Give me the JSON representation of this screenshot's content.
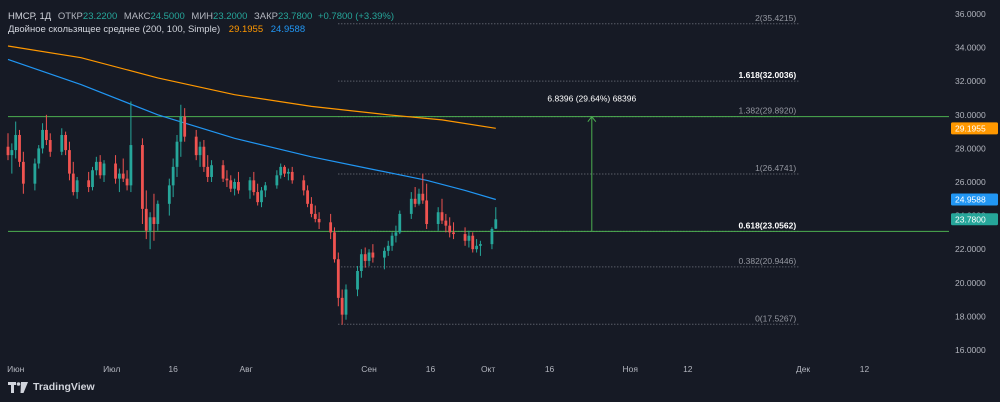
{
  "header": {
    "symbol": "НМСР, 1Д",
    "open_label": "ОТКР",
    "open_value": "23.2200",
    "high_label": "МАКС",
    "high_value": "24.5000",
    "low_label": "МИН",
    "low_value": "23.2000",
    "close_label": "ЗАКР",
    "close_value": "23.7800",
    "change": "+0.7800 (+3.39%)",
    "indicator_title": "Двойное скользящее среднее (200, 100, Simple)",
    "indicator_value_1": "29.1955",
    "indicator_value_2": "24.9588"
  },
  "branding": {
    "logo_icon": "tradingview-logo-icon",
    "logo_text": "TradingView"
  },
  "chart_data": {
    "type": "candlestick",
    "ylim": [
      15.4,
      36.6
    ],
    "y_ticks": [
      "36.0000",
      "34.0000",
      "32.0000",
      "30.0000",
      "28.0000",
      "26.0000",
      "24.0000",
      "22.0000",
      "20.0000",
      "18.0000",
      "16.0000"
    ],
    "x_ticks": [
      "Июн",
      "Июл",
      "16",
      "Авг",
      "Сен",
      "16",
      "Окт",
      "16",
      "Ноя",
      "12",
      "Дек",
      "12"
    ],
    "x_tick_days": [
      3,
      28,
      44,
      63,
      95,
      111,
      126,
      142,
      163,
      178,
      208,
      224
    ],
    "x_range_days": [
      1,
      246
    ],
    "colors": {
      "up": "#26a69a",
      "down": "#ef5350",
      "ma200": "#ff9800",
      "ma100": "#2196f3",
      "fib": "#787b86",
      "level": "#4caf50",
      "measure": "#4caf50"
    },
    "candles": [
      {
        "d": 1,
        "o": 28.1,
        "h": 28.9,
        "l": 27.3,
        "c": 27.6
      },
      {
        "d": 2,
        "o": 27.6,
        "h": 28.3,
        "l": 26.5,
        "c": 27.9
      },
      {
        "d": 3,
        "o": 27.9,
        "h": 29.6,
        "l": 27.4,
        "c": 28.8
      },
      {
        "d": 4,
        "o": 28.8,
        "h": 29.1,
        "l": 26.9,
        "c": 27.2
      },
      {
        "d": 5,
        "o": 27.2,
        "h": 27.8,
        "l": 25.3,
        "c": 25.9
      },
      {
        "d": 8,
        "o": 25.9,
        "h": 27.4,
        "l": 25.5,
        "c": 27.1
      },
      {
        "d": 9,
        "o": 27.1,
        "h": 28.2,
        "l": 26.8,
        "c": 28.0
      },
      {
        "d": 10,
        "o": 28.0,
        "h": 29.5,
        "l": 27.7,
        "c": 29.1
      },
      {
        "d": 11,
        "o": 29.1,
        "h": 30.0,
        "l": 28.2,
        "c": 28.5
      },
      {
        "d": 12,
        "o": 28.5,
        "h": 28.9,
        "l": 27.5,
        "c": 27.8
      },
      {
        "d": 15,
        "o": 27.8,
        "h": 29.2,
        "l": 27.6,
        "c": 28.8
      },
      {
        "d": 16,
        "o": 28.8,
        "h": 29.0,
        "l": 27.6,
        "c": 27.9
      },
      {
        "d": 17,
        "o": 27.9,
        "h": 28.4,
        "l": 26.1,
        "c": 26.5
      },
      {
        "d": 18,
        "o": 26.5,
        "h": 27.2,
        "l": 25.2,
        "c": 25.4
      },
      {
        "d": 19,
        "o": 25.4,
        "h": 26.3,
        "l": 25.0,
        "c": 26.1
      },
      {
        "d": 22,
        "o": 26.1,
        "h": 26.6,
        "l": 25.4,
        "c": 25.7
      },
      {
        "d": 23,
        "o": 25.7,
        "h": 26.9,
        "l": 25.5,
        "c": 26.7
      },
      {
        "d": 24,
        "o": 26.7,
        "h": 27.5,
        "l": 26.4,
        "c": 27.2
      },
      {
        "d": 25,
        "o": 27.2,
        "h": 27.6,
        "l": 26.2,
        "c": 26.4
      },
      {
        "d": 26,
        "o": 26.4,
        "h": 27.3,
        "l": 26.0,
        "c": 27.1
      },
      {
        "d": 29,
        "o": 27.1,
        "h": 27.6,
        "l": 25.9,
        "c": 26.2
      },
      {
        "d": 30,
        "o": 26.2,
        "h": 26.8,
        "l": 25.4,
        "c": 26.5
      },
      {
        "d": 31,
        "o": 26.5,
        "h": 27.4,
        "l": 26.0,
        "c": 26.2
      },
      {
        "d": 32,
        "o": 26.2,
        "h": 26.7,
        "l": 25.5,
        "c": 25.8
      },
      {
        "d": 33,
        "o": 25.8,
        "h": 30.8,
        "l": 25.4,
        "c": 28.2
      },
      {
        "d": 36,
        "o": 28.2,
        "h": 28.6,
        "l": 23.5,
        "c": 24.4
      },
      {
        "d": 37,
        "o": 24.4,
        "h": 25.5,
        "l": 22.6,
        "c": 23.1
      },
      {
        "d": 38,
        "o": 23.1,
        "h": 24.2,
        "l": 22.0,
        "c": 23.9
      },
      {
        "d": 39,
        "o": 23.9,
        "h": 25.3,
        "l": 22.5,
        "c": 23.5
      },
      {
        "d": 40,
        "o": 23.5,
        "h": 24.9,
        "l": 23.1,
        "c": 24.7
      },
      {
        "d": 43,
        "o": 24.7,
        "h": 26.2,
        "l": 24.0,
        "c": 25.8
      },
      {
        "d": 44,
        "o": 25.8,
        "h": 27.4,
        "l": 25.1,
        "c": 26.9
      },
      {
        "d": 45,
        "o": 26.9,
        "h": 28.8,
        "l": 26.3,
        "c": 28.4
      },
      {
        "d": 46,
        "o": 28.4,
        "h": 30.6,
        "l": 27.5,
        "c": 29.9
      },
      {
        "d": 47,
        "o": 29.9,
        "h": 30.4,
        "l": 28.4,
        "c": 28.7
      },
      {
        "d": 50,
        "o": 28.7,
        "h": 29.1,
        "l": 27.3,
        "c": 27.6
      },
      {
        "d": 51,
        "o": 27.6,
        "h": 28.4,
        "l": 26.9,
        "c": 28.1
      },
      {
        "d": 52,
        "o": 28.1,
        "h": 28.5,
        "l": 26.6,
        "c": 26.9
      },
      {
        "d": 53,
        "o": 26.9,
        "h": 27.6,
        "l": 26.0,
        "c": 26.3
      },
      {
        "d": 54,
        "o": 26.3,
        "h": 27.3,
        "l": 26.0,
        "c": 27.0
      },
      {
        "d": 57,
        "o": 27.0,
        "h": 27.3,
        "l": 26.0,
        "c": 26.2
      },
      {
        "d": 58,
        "o": 26.2,
        "h": 26.7,
        "l": 25.7,
        "c": 26.1
      },
      {
        "d": 59,
        "o": 26.1,
        "h": 26.4,
        "l": 25.4,
        "c": 25.6
      },
      {
        "d": 60,
        "o": 25.6,
        "h": 26.2,
        "l": 25.2,
        "c": 26.0
      },
      {
        "d": 61,
        "o": 26.0,
        "h": 26.6,
        "l": 25.3,
        "c": 25.5
      },
      {
        "d": 64,
        "o": 25.5,
        "h": 26.3,
        "l": 25.0,
        "c": 26.1
      },
      {
        "d": 65,
        "o": 26.1,
        "h": 26.6,
        "l": 25.2,
        "c": 25.4
      },
      {
        "d": 66,
        "o": 25.4,
        "h": 25.9,
        "l": 24.6,
        "c": 24.8
      },
      {
        "d": 67,
        "o": 24.8,
        "h": 25.7,
        "l": 24.5,
        "c": 25.5
      },
      {
        "d": 68,
        "o": 25.5,
        "h": 26.0,
        "l": 25.1,
        "c": 25.8
      },
      {
        "d": 71,
        "o": 25.8,
        "h": 26.7,
        "l": 25.6,
        "c": 26.4
      },
      {
        "d": 72,
        "o": 26.4,
        "h": 27.1,
        "l": 26.2,
        "c": 26.9
      },
      {
        "d": 73,
        "o": 26.9,
        "h": 27.0,
        "l": 26.3,
        "c": 26.5
      },
      {
        "d": 74,
        "o": 26.5,
        "h": 26.8,
        "l": 26.1,
        "c": 26.6
      },
      {
        "d": 75,
        "o": 26.6,
        "h": 26.9,
        "l": 25.9,
        "c": 26.1
      },
      {
        "d": 78,
        "o": 26.1,
        "h": 26.4,
        "l": 25.2,
        "c": 25.5
      },
      {
        "d": 79,
        "o": 25.5,
        "h": 25.8,
        "l": 24.5,
        "c": 24.7
      },
      {
        "d": 80,
        "o": 24.7,
        "h": 25.1,
        "l": 23.9,
        "c": 24.1
      },
      {
        "d": 81,
        "o": 24.1,
        "h": 24.6,
        "l": 23.6,
        "c": 23.8
      },
      {
        "d": 82,
        "o": 23.8,
        "h": 24.2,
        "l": 23.2,
        "c": 23.6
      },
      {
        "d": 85,
        "o": 23.6,
        "h": 24.1,
        "l": 22.6,
        "c": 23.0
      },
      {
        "d": 86,
        "o": 23.0,
        "h": 23.3,
        "l": 21.2,
        "c": 21.4
      },
      {
        "d": 87,
        "o": 21.4,
        "h": 21.8,
        "l": 18.6,
        "c": 19.1
      },
      {
        "d": 88,
        "o": 19.1,
        "h": 19.6,
        "l": 17.5,
        "c": 18.1
      },
      {
        "d": 89,
        "o": 18.1,
        "h": 19.9,
        "l": 17.8,
        "c": 19.6
      },
      {
        "d": 92,
        "o": 19.6,
        "h": 21.0,
        "l": 19.2,
        "c": 20.7
      },
      {
        "d": 93,
        "o": 20.7,
        "h": 22.0,
        "l": 20.3,
        "c": 21.7
      },
      {
        "d": 94,
        "o": 21.7,
        "h": 22.1,
        "l": 20.9,
        "c": 21.3
      },
      {
        "d": 95,
        "o": 21.3,
        "h": 22.0,
        "l": 21.0,
        "c": 21.8
      },
      {
        "d": 96,
        "o": 21.8,
        "h": 22.3,
        "l": 21.2,
        "c": 21.5
      },
      {
        "d": 99,
        "o": 21.5,
        "h": 22.1,
        "l": 20.8,
        "c": 21.9
      },
      {
        "d": 100,
        "o": 21.9,
        "h": 22.5,
        "l": 21.6,
        "c": 22.2
      },
      {
        "d": 101,
        "o": 22.2,
        "h": 23.0,
        "l": 21.9,
        "c": 22.8
      },
      {
        "d": 102,
        "o": 22.8,
        "h": 23.4,
        "l": 22.4,
        "c": 23.0
      },
      {
        "d": 103,
        "o": 23.0,
        "h": 24.3,
        "l": 22.9,
        "c": 24.1
      },
      {
        "d": 106,
        "o": 24.1,
        "h": 25.4,
        "l": 23.8,
        "c": 25.0
      },
      {
        "d": 107,
        "o": 25.0,
        "h": 25.7,
        "l": 24.5,
        "c": 24.7
      },
      {
        "d": 108,
        "o": 24.7,
        "h": 25.6,
        "l": 24.6,
        "c": 25.3
      },
      {
        "d": 109,
        "o": 25.3,
        "h": 26.5,
        "l": 24.7,
        "c": 24.9
      },
      {
        "d": 110,
        "o": 24.9,
        "h": 25.9,
        "l": 23.2,
        "c": 23.5
      },
      {
        "d": 113,
        "o": 23.5,
        "h": 24.5,
        "l": 23.1,
        "c": 24.2
      },
      {
        "d": 114,
        "o": 24.2,
        "h": 25.0,
        "l": 23.5,
        "c": 23.7
      },
      {
        "d": 115,
        "o": 23.7,
        "h": 24.1,
        "l": 23.0,
        "c": 23.4
      },
      {
        "d": 116,
        "o": 23.4,
        "h": 23.9,
        "l": 22.7,
        "c": 23.0
      },
      {
        "d": 117,
        "o": 23.0,
        "h": 23.6,
        "l": 22.6,
        "c": 22.9
      },
      {
        "d": 120,
        "o": 22.9,
        "h": 23.3,
        "l": 22.2,
        "c": 22.5
      },
      {
        "d": 121,
        "o": 22.5,
        "h": 23.1,
        "l": 22.1,
        "c": 22.8
      },
      {
        "d": 122,
        "o": 22.8,
        "h": 23.0,
        "l": 21.8,
        "c": 22.0
      },
      {
        "d": 123,
        "o": 22.0,
        "h": 22.6,
        "l": 21.8,
        "c": 22.2
      },
      {
        "d": 124,
        "o": 22.2,
        "h": 22.5,
        "l": 21.6,
        "c": 22.3
      },
      {
        "d": 127,
        "o": 22.3,
        "h": 23.3,
        "l": 22.0,
        "c": 23.2
      },
      {
        "d": 128,
        "o": 23.22,
        "h": 24.5,
        "l": 23.2,
        "c": 23.78
      }
    ],
    "ma200": [
      [
        1,
        34.1
      ],
      [
        20,
        33.4
      ],
      [
        40,
        32.2
      ],
      [
        60,
        31.2
      ],
      [
        80,
        30.5
      ],
      [
        100,
        30.0
      ],
      [
        114,
        29.7
      ],
      [
        128,
        29.2
      ]
    ],
    "ma100": [
      [
        1,
        33.3
      ],
      [
        20,
        31.8
      ],
      [
        40,
        30.0
      ],
      [
        60,
        28.6
      ],
      [
        80,
        27.5
      ],
      [
        95,
        26.8
      ],
      [
        110,
        26.1
      ],
      [
        120,
        25.5
      ],
      [
        128,
        24.96
      ]
    ],
    "fib_levels": [
      {
        "label": "2(35.4215)",
        "value": 35.4215
      },
      {
        "label": "1.618(32.0036)",
        "value": 32.0036
      },
      {
        "label": "1.382(29.8920)",
        "value": 29.892
      },
      {
        "label": "1(26.4741)",
        "value": 26.4741
      },
      {
        "label": "0.618(23.0562)",
        "value": 23.0562
      },
      {
        "label": "0.382(20.9446)",
        "value": 20.9446
      },
      {
        "label": "0(17.5267)",
        "value": 17.5267
      }
    ],
    "fib_day_range": [
      87,
      207
    ],
    "horizontal_levels": [
      29.892,
      23.0562
    ],
    "measure": {
      "label": "6.8396 (29.64%) 68396",
      "from": 23.0562,
      "to": 29.892,
      "day": 153
    },
    "price_tags": [
      {
        "label": "29.1955",
        "value": 29.1955,
        "color": "#ff9800"
      },
      {
        "label": "24.9588",
        "value": 24.9588,
        "color": "#2196f3"
      },
      {
        "label": "23.7800",
        "value": 23.78,
        "color": "#26a69a"
      }
    ]
  }
}
